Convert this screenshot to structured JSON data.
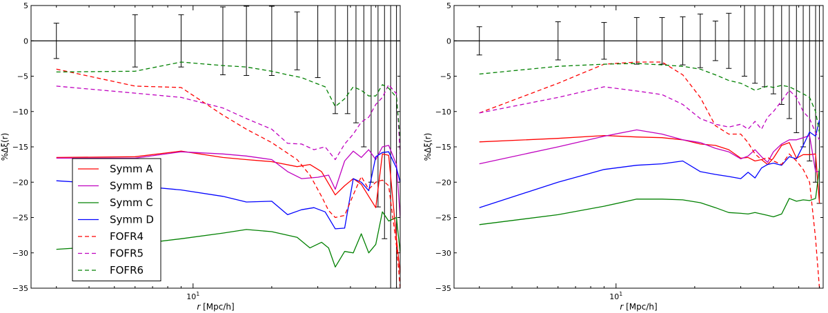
{
  "chart_data": [
    {
      "type": "line",
      "panel": "left",
      "xscale": "log",
      "xlim": [
        2.4,
        62
      ],
      "ylim": [
        -35,
        5
      ],
      "xlabel": "r [Mpc/h]",
      "ylabel": "%Δξ(r)",
      "yticks": [
        5,
        0,
        -5,
        -10,
        -15,
        -20,
        -25,
        -30,
        -35
      ],
      "yticklabels": [
        "5",
        "0",
        "−5",
        "−10",
        "−15",
        "−20",
        "−25",
        "−30",
        "−35"
      ],
      "xtick_label": {
        "value": 10,
        "base": "10",
        "exp": "1"
      },
      "grid": false,
      "legend_position": "lower-left",
      "errorbars": {
        "x": [
          3,
          6,
          9,
          13,
          16,
          20,
          25,
          30,
          35,
          39,
          42,
          45,
          48,
          51,
          54,
          57,
          60
        ],
        "y": [
          0,
          0,
          0,
          0,
          0,
          0,
          0,
          0,
          0,
          0,
          0,
          0,
          0,
          0,
          0,
          0,
          0
        ],
        "err": [
          2.5,
          3.7,
          3.7,
          4.8,
          4.9,
          4.9,
          4.1,
          5.2,
          10.3,
          10.3,
          11.6,
          15.0,
          20.0,
          23.5,
          28.0,
          35.0,
          35.0
        ]
      },
      "series": [
        {
          "name": "Symm A",
          "color": "#ff0000",
          "style": "solid",
          "x": [
            3,
            6,
            9,
            13,
            16,
            20,
            25,
            28,
            31,
            33,
            35,
            38,
            41,
            44,
            47,
            50,
            53,
            56,
            60,
            62
          ],
          "y": [
            -16.5,
            -16.4,
            -15.6,
            -16.5,
            -16.8,
            -17.1,
            -17.8,
            -17.5,
            -18.5,
            -20.2,
            -21.8,
            -20.5,
            -19.5,
            -20.3,
            -22.0,
            -23.6,
            -16.0,
            -16.2,
            -28.0,
            -33.0
          ]
        },
        {
          "name": "Symm B",
          "color": "#bf00bf",
          "style": "solid",
          "x": [
            3,
            6,
            9,
            13,
            16,
            20,
            23,
            26,
            30,
            33,
            35,
            38,
            41,
            44,
            47,
            50,
            53,
            56,
            60,
            62
          ],
          "y": [
            -16.6,
            -16.6,
            -15.7,
            -16.0,
            -16.3,
            -16.8,
            -18.5,
            -19.5,
            -19.3,
            -19.0,
            -21.0,
            -17.0,
            -15.6,
            -16.5,
            -15.4,
            -16.8,
            -15.0,
            -14.8,
            -17.5,
            -25.0
          ]
        },
        {
          "name": "Symm C",
          "color": "#008000",
          "style": "solid",
          "x": [
            3,
            6,
            9,
            13,
            16,
            20,
            25,
            28,
            31,
            33,
            35,
            38,
            41,
            44,
            47,
            50,
            53,
            56,
            60,
            62
          ],
          "y": [
            -29.5,
            -28.8,
            -28.0,
            -27.2,
            -26.7,
            -27.0,
            -27.8,
            -29.3,
            -28.5,
            -29.3,
            -32.0,
            -29.8,
            -30.0,
            -27.3,
            -30.0,
            -28.8,
            -24.2,
            -25.5,
            -25.0,
            -30.0
          ]
        },
        {
          "name": "Symm D",
          "color": "#0000ff",
          "style": "solid",
          "x": [
            3,
            6,
            9,
            13,
            16,
            20,
            23,
            26,
            29,
            32,
            35,
            38,
            41,
            44,
            47,
            50,
            53,
            56,
            60,
            62
          ],
          "y": [
            -19.8,
            -20.5,
            -21.1,
            -22.0,
            -22.8,
            -22.7,
            -24.6,
            -23.9,
            -23.6,
            -24.2,
            -26.6,
            -26.5,
            -19.5,
            -20.0,
            -21.2,
            -16.4,
            -15.8,
            -15.7,
            -18.0,
            -20.0
          ]
        },
        {
          "name": "FOFR4",
          "color": "#ff0000",
          "style": "dashed",
          "x": [
            3,
            6,
            9,
            13,
            16,
            20,
            25,
            28,
            31,
            33,
            35,
            38,
            41,
            44,
            47,
            50,
            53,
            56,
            60,
            62
          ],
          "y": [
            -4.0,
            -6.4,
            -6.6,
            -10.5,
            -12.5,
            -14.4,
            -16.8,
            -19.0,
            -22.0,
            -24.0,
            -25.0,
            -24.7,
            -21.8,
            -19.2,
            -21.0,
            -20.0,
            -19.7,
            -20.5,
            -29.0,
            -35.0
          ]
        },
        {
          "name": "FOFR5",
          "color": "#bf00bf",
          "style": "dashed",
          "x": [
            3,
            6,
            9,
            13,
            16,
            20,
            23,
            26,
            29,
            32,
            35,
            38,
            41,
            44,
            47,
            50,
            53,
            56,
            60,
            62
          ],
          "y": [
            -6.4,
            -7.4,
            -8.0,
            -9.5,
            -11.0,
            -12.5,
            -14.5,
            -14.6,
            -15.4,
            -15.0,
            -16.8,
            -14.6,
            -13.2,
            -11.5,
            -10.8,
            -9.0,
            -8.0,
            -6.2,
            -7.5,
            -16.0
          ]
        },
        {
          "name": "FOFR6",
          "color": "#008000",
          "style": "dashed",
          "x": [
            3,
            6,
            9,
            13,
            16,
            20,
            23,
            26,
            29,
            32,
            35,
            38,
            41,
            44,
            47,
            50,
            53,
            56,
            60,
            62
          ],
          "y": [
            -4.4,
            -4.3,
            -3.0,
            -3.5,
            -3.7,
            -4.3,
            -4.8,
            -5.2,
            -5.9,
            -6.5,
            -9.3,
            -8.2,
            -6.5,
            -7.0,
            -7.8,
            -7.8,
            -6.2,
            -6.7,
            -8.0,
            -14.0
          ]
        }
      ],
      "legend": [
        "Symm A",
        "Symm B",
        "Symm C",
        "Symm D",
        "FOFR4",
        "FOFR5",
        "FOFR6"
      ]
    },
    {
      "type": "line",
      "panel": "right",
      "xscale": "log",
      "xlim": [
        2.4,
        62
      ],
      "ylim": [
        -35,
        5
      ],
      "xlabel": "r [Mpc/h]",
      "ylabel": "%Δξ(r)",
      "yticks": [
        5,
        0,
        -5,
        -10,
        -15,
        -20,
        -25,
        -30,
        -35
      ],
      "yticklabels": [
        "5",
        "0",
        "−5",
        "−10",
        "−15",
        "−20",
        "−25",
        "−30",
        "−35"
      ],
      "xtick_label": {
        "value": 10,
        "base": "10",
        "exp": "1"
      },
      "grid": false,
      "errorbars": {
        "x": [
          3,
          6,
          9,
          12,
          15,
          18,
          21,
          24,
          27,
          31,
          34,
          37,
          40,
          43,
          46,
          49,
          52,
          55,
          58,
          60
        ],
        "y": [
          0,
          0,
          0,
          0,
          0,
          0,
          0,
          0,
          0,
          0,
          0,
          0,
          0,
          0,
          0,
          0,
          0,
          0,
          0,
          0
        ],
        "err": [
          2.0,
          2.7,
          2.6,
          3.3,
          3.3,
          3.4,
          3.8,
          2.8,
          3.9,
          5.0,
          6.0,
          6.5,
          7.5,
          9.0,
          11.0,
          13.0,
          15.0,
          17.0,
          20.0,
          23.0
        ]
      },
      "series": [
        {
          "name": "Symm A",
          "color": "#ff0000",
          "style": "solid",
          "x": [
            3,
            6,
            9,
            12,
            15,
            18,
            21,
            24,
            27,
            30,
            32,
            34,
            36,
            38,
            40,
            43,
            46,
            49,
            52,
            55,
            58,
            60
          ],
          "y": [
            -14.3,
            -13.8,
            -13.4,
            -13.6,
            -13.7,
            -14.0,
            -14.6,
            -14.8,
            -15.4,
            -16.6,
            -16.5,
            -17.0,
            -16.8,
            -17.5,
            -16.6,
            -14.8,
            -14.4,
            -16.6,
            -16.1,
            -16.1,
            -16.0,
            -23.0
          ]
        },
        {
          "name": "Symm B",
          "color": "#bf00bf",
          "style": "solid",
          "x": [
            3,
            6,
            9,
            12,
            15,
            18,
            21,
            24,
            27,
            30,
            32,
            34,
            36,
            38,
            40,
            43,
            46,
            49,
            52,
            55,
            58,
            60
          ],
          "y": [
            -17.4,
            -15.0,
            -13.5,
            -12.6,
            -13.2,
            -14.0,
            -14.4,
            -15.2,
            -15.7,
            -16.7,
            -16.3,
            -15.4,
            -16.4,
            -17.2,
            -15.7,
            -14.6,
            -14.0,
            -14.0,
            -13.7,
            -13.4,
            -18.5,
            -18.5
          ]
        },
        {
          "name": "Symm C",
          "color": "#008000",
          "style": "solid",
          "x": [
            3,
            6,
            9,
            12,
            15,
            18,
            21,
            24,
            27,
            30,
            32,
            34,
            36,
            38,
            40,
            43,
            46,
            49,
            52,
            55,
            58,
            60
          ],
          "y": [
            -26.0,
            -24.6,
            -23.4,
            -22.4,
            -22.4,
            -22.5,
            -22.9,
            -23.6,
            -24.3,
            -24.4,
            -24.5,
            -24.3,
            -24.5,
            -24.7,
            -24.9,
            -24.5,
            -22.3,
            -22.7,
            -22.5,
            -22.6,
            -22.3,
            -18.0
          ]
        },
        {
          "name": "Symm D",
          "color": "#0000ff",
          "style": "solid",
          "x": [
            3,
            6,
            9,
            12,
            15,
            18,
            21,
            24,
            27,
            30,
            32,
            34,
            36,
            38,
            40,
            43,
            46,
            49,
            52,
            55,
            58,
            60
          ],
          "y": [
            -23.6,
            -20.0,
            -18.2,
            -17.6,
            -17.4,
            -17.0,
            -18.5,
            -18.9,
            -19.2,
            -19.5,
            -18.6,
            -19.4,
            -18.0,
            -17.5,
            -17.3,
            -17.6,
            -16.4,
            -16.7,
            -14.8,
            -12.9,
            -13.5,
            -11.2
          ]
        },
        {
          "name": "FOFR4",
          "color": "#ff0000",
          "style": "dashed",
          "x": [
            3,
            6,
            9,
            12,
            15,
            18,
            21,
            24,
            27,
            30,
            32,
            34,
            36,
            38,
            40,
            43,
            46,
            49,
            52,
            55,
            58,
            60
          ],
          "y": [
            -10.2,
            -6.0,
            -3.3,
            -3.0,
            -3.0,
            -4.8,
            -8.0,
            -12.0,
            -13.2,
            -13.2,
            -14.4,
            -16.0,
            -16.8,
            -16.5,
            -17.0,
            -17.5,
            -16.0,
            -17.0,
            -18.2,
            -20.0,
            -28.0,
            -35.0
          ]
        },
        {
          "name": "FOFR5",
          "color": "#bf00bf",
          "style": "dashed",
          "x": [
            3,
            6,
            9,
            12,
            15,
            18,
            21,
            24,
            27,
            30,
            32,
            34,
            36,
            38,
            40,
            43,
            46,
            49,
            52,
            55,
            58,
            60
          ],
          "y": [
            -10.2,
            -8.0,
            -6.5,
            -7.1,
            -7.6,
            -9.0,
            -11.0,
            -11.8,
            -12.2,
            -11.8,
            -12.5,
            -11.4,
            -12.5,
            -10.8,
            -10.0,
            -8.5,
            -7.0,
            -8.0,
            -10.0,
            -11.0,
            -13.0,
            -14.0
          ]
        },
        {
          "name": "FOFR6",
          "color": "#008000",
          "style": "dashed",
          "x": [
            3,
            6,
            9,
            12,
            15,
            18,
            21,
            24,
            27,
            30,
            32,
            34,
            36,
            38,
            40,
            43,
            46,
            49,
            52,
            55,
            58,
            60
          ],
          "y": [
            -4.7,
            -3.6,
            -3.3,
            -3.2,
            -3.4,
            -3.6,
            -4.0,
            -4.8,
            -5.6,
            -6.0,
            -6.5,
            -7.0,
            -6.7,
            -6.4,
            -6.6,
            -6.3,
            -6.5,
            -7.0,
            -7.5,
            -8.0,
            -10.0,
            -13.0
          ]
        }
      ]
    }
  ]
}
